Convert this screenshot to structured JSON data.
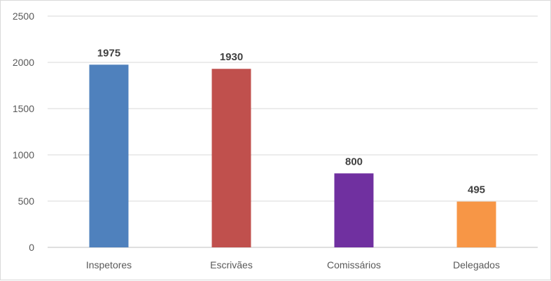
{
  "chart_data": {
    "type": "bar",
    "categories": [
      "Inspetores",
      "Escrivães",
      "Comissários",
      "Delegados"
    ],
    "values": [
      1975,
      1930,
      800,
      495
    ],
    "colors": [
      "#4f81bd",
      "#c0504d",
      "#7030a0",
      "#f79646"
    ],
    "data_labels": [
      "1975",
      "1930",
      "800",
      "495"
    ],
    "title": "",
    "xlabel": "",
    "ylabel": "",
    "ylim": [
      0,
      2500
    ],
    "yticks": [
      0,
      500,
      1000,
      1500,
      2000,
      2500
    ],
    "grid": true,
    "legend": "none"
  }
}
